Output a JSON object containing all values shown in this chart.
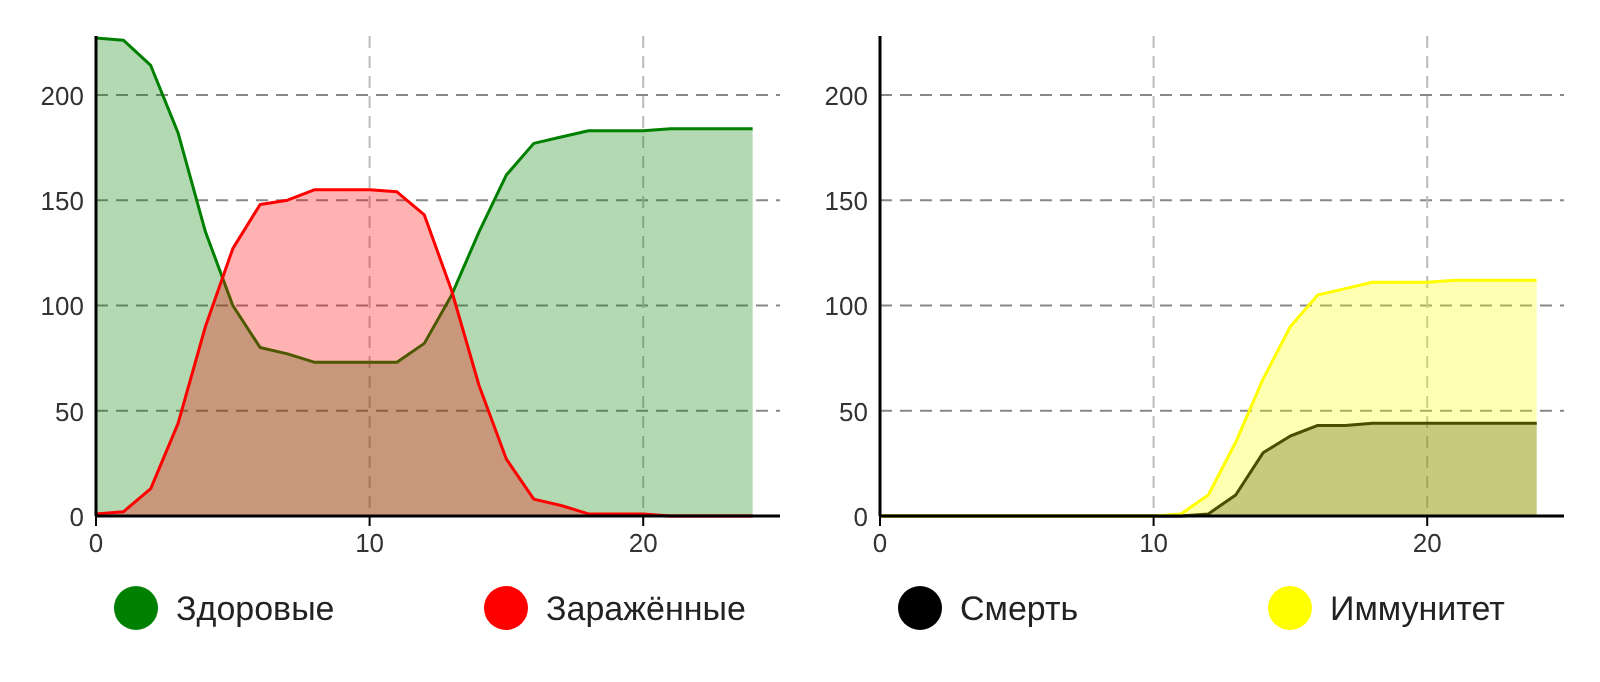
{
  "chart_data": [
    {
      "type": "area",
      "x": [
        0,
        1,
        2,
        3,
        4,
        5,
        6,
        7,
        8,
        9,
        10,
        11,
        12,
        13,
        14,
        15,
        16,
        17,
        18,
        19,
        20,
        21,
        22,
        23,
        24
      ],
      "xlim": [
        0,
        25
      ],
      "xticks": [
        0,
        10,
        20
      ],
      "ylim": [
        0,
        228
      ],
      "yticks": [
        0,
        50,
        100,
        150,
        200
      ],
      "grid": true,
      "legend": "bottom",
      "series": [
        {
          "name": "Здоровые",
          "color": "#008000",
          "values": [
            227,
            226,
            214,
            182,
            135,
            100,
            80,
            77,
            73,
            73,
            73,
            73,
            82,
            105,
            135,
            162,
            177,
            180,
            183,
            183,
            183,
            184,
            184,
            184,
            184
          ]
        },
        {
          "name": "Заражённые",
          "color": "#ff0000",
          "values": [
            1,
            2,
            13,
            44,
            90,
            127,
            148,
            150,
            155,
            155,
            155,
            154,
            143,
            107,
            62,
            27,
            8,
            5,
            1,
            1,
            1,
            0,
            0,
            0,
            0
          ]
        }
      ]
    },
    {
      "type": "area",
      "x": [
        0,
        1,
        2,
        3,
        4,
        5,
        6,
        7,
        8,
        9,
        10,
        11,
        12,
        13,
        14,
        15,
        16,
        17,
        18,
        19,
        20,
        21,
        22,
        23,
        24
      ],
      "xlim": [
        0,
        25
      ],
      "xticks": [
        0,
        10,
        20
      ],
      "ylim": [
        0,
        228
      ],
      "yticks": [
        0,
        50,
        100,
        150,
        200
      ],
      "grid": true,
      "legend": "bottom",
      "series": [
        {
          "name": "Смерть",
          "color": "#000000",
          "values": [
            0,
            0,
            0,
            0,
            0,
            0,
            0,
            0,
            0,
            0,
            0,
            0,
            1,
            10,
            30,
            38,
            43,
            43,
            44,
            44,
            44,
            44,
            44,
            44,
            44
          ]
        },
        {
          "name": "Иммунитет",
          "color": "#ffff00",
          "values": [
            0,
            0,
            0,
            0,
            0,
            0,
            0,
            0,
            0,
            0,
            0,
            1,
            10,
            35,
            65,
            90,
            105,
            108,
            111,
            111,
            111,
            112,
            112,
            112,
            112
          ]
        }
      ]
    }
  ]
}
